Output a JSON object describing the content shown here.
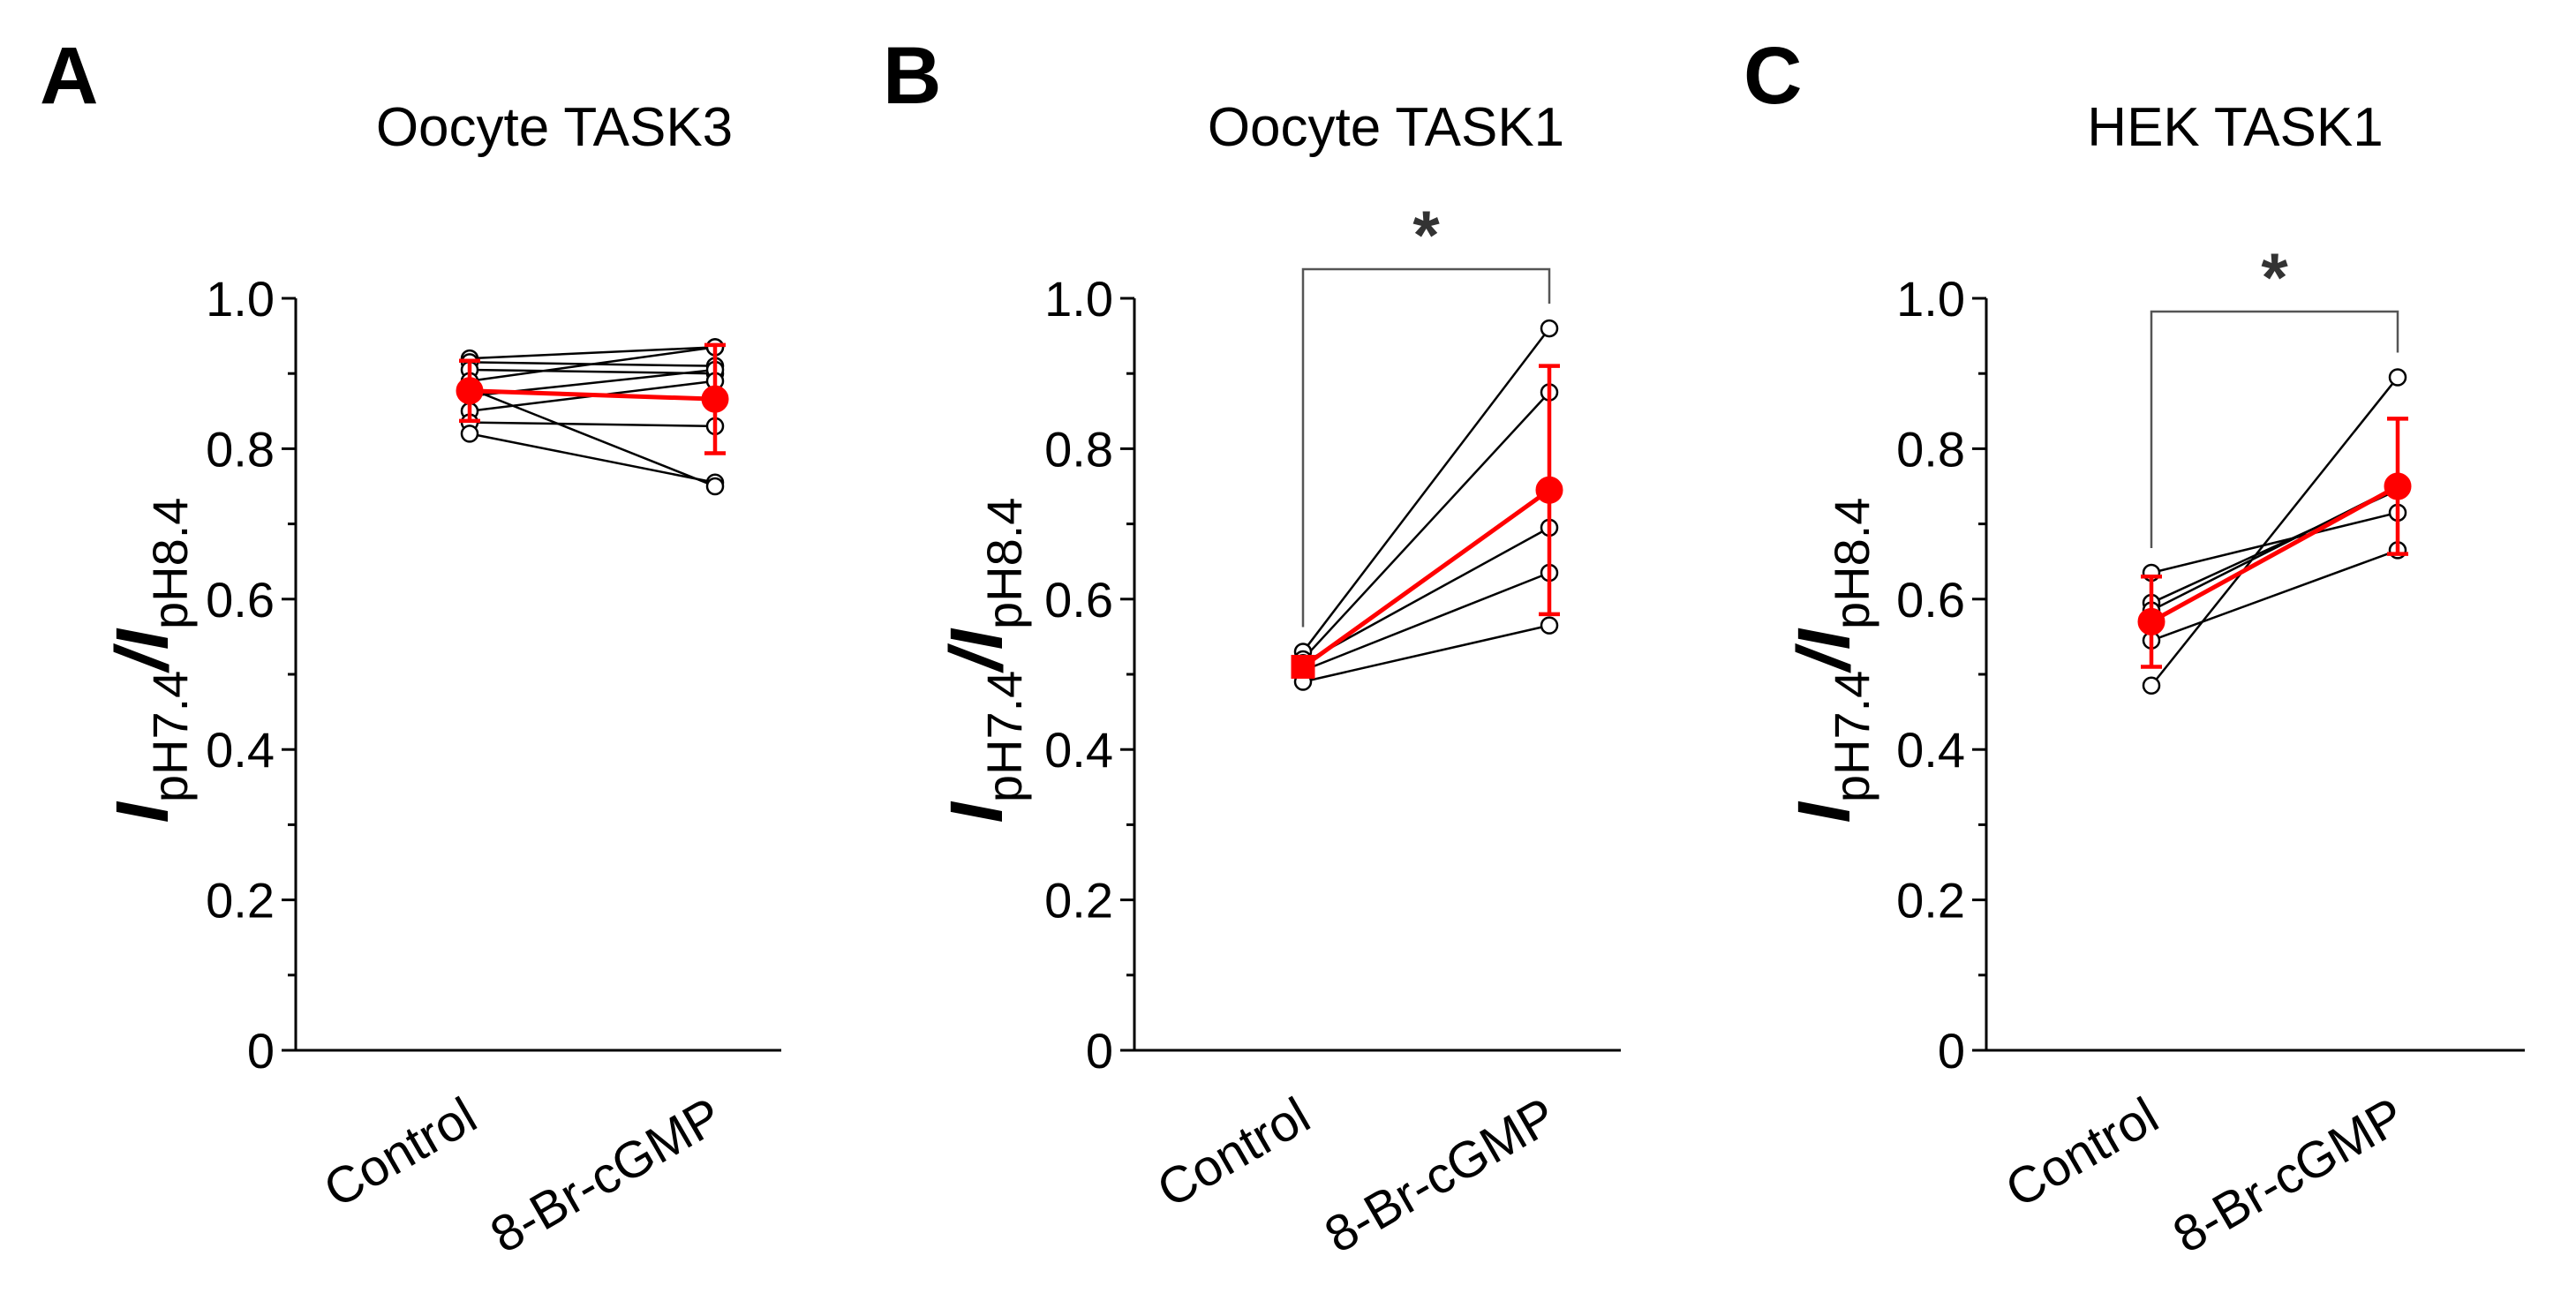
{
  "chart_data": [
    {
      "panel": "A",
      "type": "scatter",
      "title": "Oocyte TASK3",
      "ylabel": "I pH7.4 / I pH8.4",
      "ylim": [
        0,
        1.0
      ],
      "yticks": [
        "0",
        "0.2",
        "0.4",
        "0.6",
        "0.8",
        "1.0"
      ],
      "categories": [
        "Control",
        "8-Br-cGMP"
      ],
      "individual_pairs": [
        [
          0.92,
          0.935
        ],
        [
          0.915,
          0.91
        ],
        [
          0.905,
          0.9
        ],
        [
          0.89,
          0.935
        ],
        [
          0.87,
          0.905
        ],
        [
          0.85,
          0.89
        ],
        [
          0.835,
          0.83
        ],
        [
          0.82,
          0.755
        ],
        [
          0.88,
          0.75
        ]
      ],
      "mean": [
        0.877,
        0.866
      ],
      "error": [
        0.04,
        0.072
      ],
      "mean_marker": "circle",
      "significance": ""
    },
    {
      "panel": "B",
      "type": "scatter",
      "title": "Oocyte TASK1",
      "ylabel": "I pH7.4 / I pH8.4",
      "ylim": [
        0,
        1.0
      ],
      "yticks": [
        "0",
        "0.2",
        "0.4",
        "0.6",
        "0.8",
        "1.0"
      ],
      "categories": [
        "Control",
        "8-Br-cGMP"
      ],
      "individual_pairs": [
        [
          0.53,
          0.96
        ],
        [
          0.52,
          0.875
        ],
        [
          0.515,
          0.695
        ],
        [
          0.505,
          0.635
        ],
        [
          0.49,
          0.565
        ]
      ],
      "mean": [
        0.51,
        0.745
      ],
      "error": [
        0.0,
        0.165
      ],
      "mean_marker": "square",
      "significance": "*"
    },
    {
      "panel": "C",
      "type": "scatter",
      "title": "HEK TASK1",
      "ylabel": "I pH7.4 / I pH8.4",
      "ylim": [
        0,
        1.0
      ],
      "yticks": [
        "0",
        "0.2",
        "0.4",
        "0.6",
        "0.8",
        "1.0"
      ],
      "categories": [
        "Control",
        "8-Br-cGMP"
      ],
      "individual_pairs": [
        [
          0.635,
          0.715
        ],
        [
          0.595,
          0.745
        ],
        [
          0.585,
          0.75
        ],
        [
          0.545,
          0.665
        ],
        [
          0.485,
          0.895
        ]
      ],
      "mean": [
        0.57,
        0.75
      ],
      "error": [
        0.06,
        0.09
      ],
      "mean_marker": "circle",
      "significance": "*"
    }
  ],
  "ylabel_parts": {
    "main": "I",
    "sub1": "pH7.4",
    "slash": "/",
    "sub2": "pH8.4"
  },
  "colors": {
    "mean": "#ff0000",
    "individual": "#000000",
    "bracket": "#555555"
  }
}
